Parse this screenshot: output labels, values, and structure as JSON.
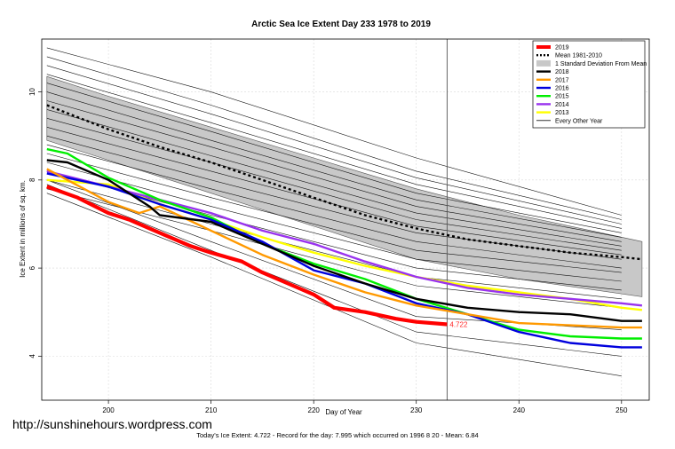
{
  "chart_data": {
    "type": "line",
    "title": "Arctic Sea Ice Extent Day 233 1978 to 2019",
    "xlabel": "Day of Year",
    "ylabel": "Ice Extent in millions of sq. km.",
    "xlim": [
      193.5,
      252.7
    ],
    "ylim": [
      3.0,
      11.2
    ],
    "x_ticks": [
      200,
      210,
      220,
      230,
      240,
      250
    ],
    "y_ticks": [
      4,
      6,
      8,
      10
    ],
    "grid": true,
    "legend_position": "top-right",
    "vertical_marker_day": 233,
    "annotation": {
      "x": 233,
      "y": 4.722,
      "text": "4.722",
      "color": "#ff2a2a"
    },
    "legend": [
      {
        "label": "2019",
        "color": "#ff0000",
        "style": "thick"
      },
      {
        "label": "Mean 1981-2010",
        "color": "#000000",
        "style": "dotted"
      },
      {
        "label": "1 Standard Deviation From Mean",
        "color": "#bdbdbd",
        "style": "band"
      },
      {
        "label": "2018",
        "color": "#000000",
        "style": "line"
      },
      {
        "label": "2017",
        "color": "#ff9900",
        "style": "line"
      },
      {
        "label": "2016",
        "color": "#0000dd",
        "style": "line"
      },
      {
        "label": "2015",
        "color": "#00ee00",
        "style": "line"
      },
      {
        "label": "2014",
        "color": "#9933ee",
        "style": "line"
      },
      {
        "label": "2013",
        "color": "#ffff00",
        "style": "line"
      },
      {
        "label": "Every Other Year",
        "color": "#000000",
        "style": "thin"
      }
    ],
    "band": {
      "x": [
        194,
        200,
        210,
        220,
        230,
        240,
        252
      ],
      "upper": [
        10.35,
        9.9,
        9.2,
        8.5,
        7.8,
        7.2,
        6.6
      ],
      "lower": [
        8.9,
        8.45,
        7.7,
        6.95,
        6.2,
        5.75,
        5.35
      ]
    },
    "series": [
      {
        "name": "Mean 1981-2010",
        "color": "#000000",
        "width": 2.4,
        "dash": "3,3",
        "x": [
          194,
          200,
          205,
          210,
          215,
          220,
          225,
          230,
          235,
          240,
          245,
          250,
          252
        ],
        "y": [
          9.7,
          9.15,
          8.75,
          8.4,
          8.0,
          7.6,
          7.2,
          6.9,
          6.65,
          6.5,
          6.35,
          6.25,
          6.2
        ]
      },
      {
        "name": "2013",
        "color": "#ffff00",
        "width": 2.4,
        "x": [
          194,
          200,
          205,
          210,
          215,
          220,
          225,
          230,
          235,
          240,
          245,
          250,
          252
        ],
        "y": [
          8.0,
          7.9,
          7.45,
          7.1,
          6.7,
          6.35,
          6.05,
          5.8,
          5.6,
          5.45,
          5.3,
          5.1,
          5.05
        ]
      },
      {
        "name": "2014",
        "color": "#9933ee",
        "width": 2.4,
        "x": [
          194,
          200,
          205,
          210,
          215,
          220,
          225,
          230,
          235,
          240,
          245,
          250,
          252
        ],
        "y": [
          8.2,
          7.85,
          7.55,
          7.25,
          6.85,
          6.55,
          6.15,
          5.8,
          5.55,
          5.4,
          5.3,
          5.2,
          5.15
        ]
      },
      {
        "name": "2015",
        "color": "#00ee00",
        "width": 2.4,
        "x": [
          194,
          196,
          200,
          205,
          210,
          215,
          220,
          225,
          230,
          235,
          240,
          245,
          250,
          252
        ],
        "y": [
          8.7,
          8.6,
          8.05,
          7.55,
          7.15,
          6.55,
          6.1,
          5.75,
          5.3,
          4.95,
          4.6,
          4.45,
          4.4,
          4.4
        ]
      },
      {
        "name": "2016",
        "color": "#0000dd",
        "width": 2.4,
        "x": [
          194,
          200,
          205,
          210,
          215,
          220,
          225,
          230,
          235,
          240,
          245,
          250,
          252
        ],
        "y": [
          8.15,
          7.85,
          7.45,
          7.1,
          6.6,
          5.95,
          5.65,
          5.2,
          4.95,
          4.55,
          4.3,
          4.2,
          4.2
        ]
      },
      {
        "name": "2017",
        "color": "#ff9900",
        "width": 2.4,
        "x": [
          194,
          200,
          203,
          205,
          210,
          215,
          220,
          225,
          230,
          235,
          240,
          245,
          250,
          252
        ],
        "y": [
          8.25,
          7.5,
          7.25,
          7.4,
          6.85,
          6.3,
          5.85,
          5.45,
          5.15,
          4.95,
          4.75,
          4.7,
          4.65,
          4.65
        ]
      },
      {
        "name": "2018",
        "color": "#000000",
        "width": 2.4,
        "x": [
          194,
          196,
          200,
          204,
          205,
          210,
          215,
          220,
          225,
          230,
          235,
          240,
          245,
          250,
          252
        ],
        "y": [
          8.45,
          8.4,
          8.0,
          7.4,
          7.2,
          7.05,
          6.55,
          6.05,
          5.65,
          5.3,
          5.1,
          5.0,
          4.95,
          4.8,
          4.8
        ]
      },
      {
        "name": "2019",
        "color": "#ff0000",
        "width": 4.2,
        "x": [
          194,
          197,
          200,
          202,
          205,
          208,
          210,
          213,
          215,
          218,
          220,
          222,
          225,
          228,
          230,
          233
        ],
        "y": [
          7.85,
          7.6,
          7.25,
          7.1,
          6.8,
          6.5,
          6.35,
          6.15,
          5.9,
          5.6,
          5.4,
          5.1,
          5.0,
          4.85,
          4.78,
          4.722
        ]
      }
    ],
    "other_years": [
      {
        "x": [
          194,
          210,
          230,
          250
        ],
        "y": [
          11.0,
          10.0,
          8.5,
          7.2
        ]
      },
      {
        "x": [
          194,
          210,
          230,
          250
        ],
        "y": [
          10.8,
          9.7,
          8.2,
          7.1
        ]
      },
      {
        "x": [
          194,
          210,
          230,
          250
        ],
        "y": [
          10.6,
          9.5,
          8.05,
          7.0
        ]
      },
      {
        "x": [
          194,
          210,
          230,
          250
        ],
        "y": [
          10.4,
          9.3,
          7.9,
          6.9
        ]
      },
      {
        "x": [
          194,
          210,
          230,
          250
        ],
        "y": [
          10.2,
          9.1,
          7.7,
          6.8
        ]
      },
      {
        "x": [
          194,
          210,
          230,
          250
        ],
        "y": [
          10.0,
          8.9,
          7.55,
          6.7
        ]
      },
      {
        "x": [
          194,
          210,
          230,
          250
        ],
        "y": [
          9.8,
          8.75,
          7.4,
          6.6
        ]
      },
      {
        "x": [
          194,
          210,
          230,
          250
        ],
        "y": [
          9.6,
          8.55,
          7.25,
          6.5
        ]
      },
      {
        "x": [
          194,
          210,
          230,
          250
        ],
        "y": [
          9.4,
          8.4,
          7.1,
          6.4
        ]
      },
      {
        "x": [
          194,
          210,
          230,
          250
        ],
        "y": [
          9.2,
          8.2,
          6.95,
          6.3
        ]
      },
      {
        "x": [
          194,
          210,
          230,
          250
        ],
        "y": [
          9.0,
          8.0,
          6.8,
          6.2
        ]
      },
      {
        "x": [
          194,
          210,
          230,
          250
        ],
        "y": [
          8.8,
          7.8,
          6.6,
          6.0
        ]
      },
      {
        "x": [
          194,
          210,
          230,
          250
        ],
        "y": [
          8.6,
          7.6,
          6.4,
          5.9
        ]
      },
      {
        "x": [
          194,
          210,
          230,
          250
        ],
        "y": [
          8.4,
          7.4,
          6.2,
          5.7
        ]
      },
      {
        "x": [
          194,
          210,
          230,
          250
        ],
        "y": [
          8.2,
          7.2,
          6.0,
          5.5
        ]
      },
      {
        "x": [
          194,
          210,
          230,
          250
        ],
        "y": [
          8.0,
          7.0,
          5.8,
          5.3
        ]
      },
      {
        "x": [
          194,
          210,
          230,
          250
        ],
        "y": [
          7.8,
          6.85,
          5.6,
          5.1
        ]
      },
      {
        "x": [
          194,
          210,
          230,
          250
        ],
        "y": [
          8.0,
          6.6,
          4.9,
          4.6
        ]
      },
      {
        "x": [
          194,
          210,
          230,
          250
        ],
        "y": [
          7.9,
          6.4,
          4.55,
          4.0
        ]
      },
      {
        "x": [
          194,
          210,
          230,
          250
        ],
        "y": [
          7.7,
          6.25,
          4.3,
          3.55
        ]
      }
    ]
  },
  "watermark": "http://sunshinehours.wordpress.com",
  "footer": "Today's Ice Extent: 4.722   - Record for the day: 7.995 which occurred on 1996 8 20   - Mean: 6.84"
}
